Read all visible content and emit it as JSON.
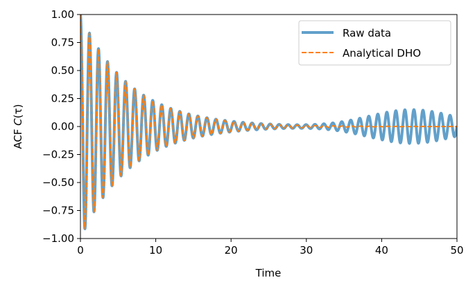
{
  "chart_data": {
    "type": "line",
    "title": "",
    "xlabel": "Time",
    "ylabel": "ACF C(τ)",
    "ylabel_prefix": "ACF ",
    "ylabel_symbol": "C",
    "ylabel_arg": "(τ)",
    "xlim": [
      0,
      50
    ],
    "ylim": [
      -1.0,
      1.0
    ],
    "x_ticks": [
      0,
      10,
      20,
      30,
      40,
      50
    ],
    "x_tick_labels": [
      "0",
      "10",
      "20",
      "30",
      "40",
      "50"
    ],
    "y_ticks": [
      -1.0,
      -0.75,
      -0.5,
      -0.25,
      0.0,
      0.25,
      0.5,
      0.75,
      1.0
    ],
    "y_tick_labels": [
      "−1.00",
      "−0.75",
      "−0.50",
      "−0.25",
      "0.00",
      "0.25",
      "0.50",
      "0.75",
      "1.00"
    ],
    "grid": false,
    "legend_position": "top-right",
    "series": [
      {
        "name": "Raw data",
        "color": "#1f77b4",
        "style": "solid-thick",
        "model": "damped-cosine-with-late-beat",
        "amplitude": 1.0,
        "period": 1.2,
        "decay_time": 6.6,
        "late_beat_amplitude": 0.15,
        "late_beat_center": 44.0,
        "late_beat_width": 8.0
      },
      {
        "name": "Analytical DHO",
        "color": "#ff7f0e",
        "style": "dashed",
        "model": "damped-cosine",
        "amplitude": 1.0,
        "period": 1.2,
        "decay_time": 6.6
      }
    ]
  }
}
